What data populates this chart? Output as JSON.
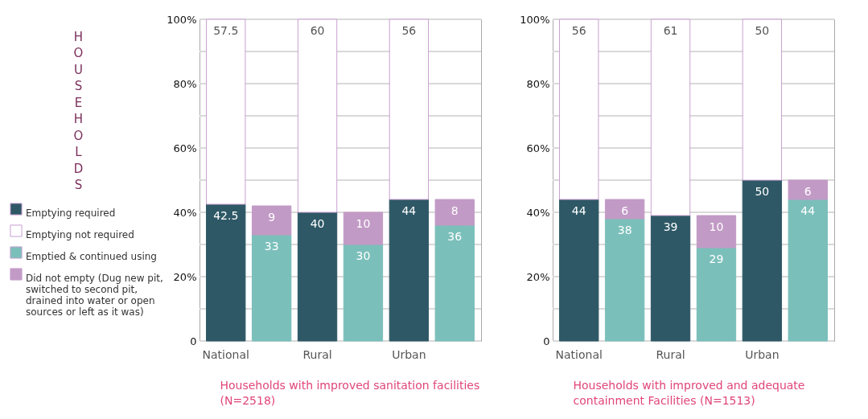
{
  "chart_data": [
    {
      "type": "bar",
      "stacked": true,
      "ylabel": "HOUSEHOLDS",
      "xlabel": "Households with improved sanitation facilities (N=2518)",
      "categories": [
        "National",
        null,
        "Rural",
        null,
        "Urban",
        null
      ],
      "series": [
        {
          "name": "Emptying required",
          "color": "#2e5866",
          "values": [
            42.5,
            null,
            40,
            null,
            44,
            null
          ]
        },
        {
          "name": "Emptying not required",
          "color": "#ffffff",
          "values": [
            57.5,
            null,
            60,
            null,
            56,
            null
          ]
        },
        {
          "name": "Emptied & continued using",
          "color": "#7bbfba",
          "values": [
            null,
            33,
            null,
            30,
            null,
            36
          ]
        },
        {
          "name": "Did not empty  (Dug new pit, switched to second pit, drained into water or open sources or left as it was)",
          "color": "#c29ac6",
          "values": [
            null,
            9,
            null,
            10,
            null,
            8
          ]
        }
      ],
      "ylim": [
        0,
        100
      ],
      "yticks": [
        {
          "value": 0,
          "label": "0"
        },
        {
          "value": 10,
          "label": null
        },
        {
          "value": 20,
          "label": "20%"
        },
        {
          "value": 30,
          "label": null
        },
        {
          "value": 40,
          "label": "40%"
        },
        {
          "value": 50,
          "label": null
        },
        {
          "value": 60,
          "label": "60%"
        },
        {
          "value": 70,
          "label": null
        },
        {
          "value": 80,
          "label": "80%"
        },
        {
          "value": 90,
          "label": null
        },
        {
          "value": 100,
          "label": "100%"
        }
      ],
      "grid": "y",
      "legend": "left",
      "data_labels": true
    },
    {
      "type": "bar",
      "stacked": true,
      "xlabel": "Households with improved and adequate containment Facilities (N=1513)",
      "categories": [
        "National",
        null,
        "Rural",
        null,
        "Urban",
        null
      ],
      "series": [
        {
          "name": "Emptying required",
          "color": "#2e5866",
          "values": [
            44,
            null,
            39,
            null,
            50,
            null
          ]
        },
        {
          "name": "Emptying not required",
          "color": "#ffffff",
          "values": [
            56,
            null,
            61,
            null,
            50,
            null
          ]
        },
        {
          "name": "Emptied & continued using",
          "color": "#7bbfba",
          "values": [
            null,
            38,
            null,
            29,
            null,
            44
          ]
        },
        {
          "name": "Did not empty  (Dug new pit, switched to second pit, drained into water or open sources or left as it was)",
          "color": "#c29ac6",
          "values": [
            null,
            6,
            null,
            10,
            null,
            6
          ]
        }
      ],
      "ylim": [
        0,
        100
      ],
      "yticks": [
        {
          "value": 0,
          "label": "0"
        },
        {
          "value": 10,
          "label": null
        },
        {
          "value": 20,
          "label": "20%"
        },
        {
          "value": 30,
          "label": null
        },
        {
          "value": 40,
          "label": "40%"
        },
        {
          "value": 50,
          "label": null
        },
        {
          "value": 60,
          "label": "60%"
        },
        {
          "value": 70,
          "label": null
        },
        {
          "value": 80,
          "label": "80%"
        },
        {
          "value": 90,
          "label": null
        },
        {
          "value": 100,
          "label": "100%"
        }
      ],
      "grid": "y",
      "legend": "left",
      "data_labels": true
    }
  ]
}
